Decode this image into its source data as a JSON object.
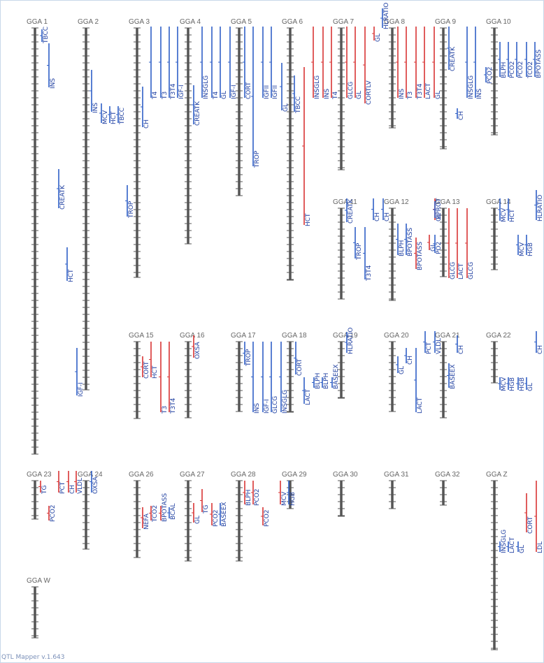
{
  "footer": "QTL Mapper v.1.643",
  "colors": {
    "axis": "#555555",
    "up": "#2f5fc6",
    "down": "#d93434",
    "title": "#666666",
    "frame": "#c8d8ea"
  },
  "chromosomes": [
    {
      "name": "GGA 1",
      "qtls": [
        {
          "trait": "TBCC",
          "color": "blue"
        },
        {
          "trait": "INS",
          "color": "blue"
        },
        {
          "trait": "CREATK",
          "color": "blue"
        },
        {
          "trait": "HCT",
          "color": "blue"
        },
        {
          "trait": "IGF-I",
          "color": "blue"
        }
      ]
    },
    {
      "name": "GGA 2",
      "qtls": [
        {
          "trait": "INS",
          "color": "blue"
        },
        {
          "trait": "MCV",
          "color": "blue"
        },
        {
          "trait": "HCT",
          "color": "blue"
        },
        {
          "trait": "TBCC",
          "color": "blue"
        }
      ]
    },
    {
      "name": "GGA 3",
      "qtls": [
        {
          "trait": "CH",
          "color": "blue"
        },
        {
          "trait": "TROP",
          "color": "blue"
        },
        {
          "trait": "T4",
          "color": "blue"
        },
        {
          "trait": "T3",
          "color": "blue"
        },
        {
          "trait": "T3T4",
          "color": "blue"
        },
        {
          "trait": "IGF-I",
          "color": "blue"
        }
      ]
    },
    {
      "name": "GGA 4",
      "qtls": [
        {
          "trait": "CREATK",
          "color": "blue"
        },
        {
          "trait": "INSGLG",
          "color": "blue"
        },
        {
          "trait": "T4",
          "color": "blue"
        },
        {
          "trait": "GL",
          "color": "blue"
        },
        {
          "trait": "IGF-I",
          "color": "blue"
        }
      ]
    },
    {
      "name": "GGA 5",
      "qtls": [
        {
          "trait": "CORT",
          "color": "blue"
        },
        {
          "trait": "TROP",
          "color": "blue"
        },
        {
          "trait": "IGFII",
          "color": "blue"
        },
        {
          "trait": "IGFII",
          "color": "blue"
        }
      ]
    },
    {
      "name": "GGA 6",
      "qtls": [
        {
          "trait": "GL",
          "color": "blue"
        },
        {
          "trait": "TBCC",
          "color": "blue"
        },
        {
          "trait": "HCT",
          "color": "red"
        }
      ]
    },
    {
      "name": "GGA 7",
      "qtls": [
        {
          "trait": "INSGLG",
          "color": "red"
        },
        {
          "trait": "INS",
          "color": "red"
        },
        {
          "trait": "T4",
          "color": "red"
        },
        {
          "trait": "GLCG",
          "color": "red"
        },
        {
          "trait": "GL",
          "color": "red"
        },
        {
          "trait": "CORTLV",
          "color": "red"
        }
      ]
    },
    {
      "name": "GGA 8",
      "qtls": [
        {
          "trait": "GL",
          "color": "red"
        },
        {
          "trait": "HLRATIO",
          "color": "blue"
        },
        {
          "trait": "INS",
          "color": "red"
        },
        {
          "trait": "T3",
          "color": "red"
        },
        {
          "trait": "T3T4",
          "color": "red"
        },
        {
          "trait": "LACT",
          "color": "red"
        },
        {
          "trait": "GL",
          "color": "red"
        }
      ]
    },
    {
      "name": "GGA 9",
      "qtls": [
        {
          "trait": "CREATK",
          "color": "blue"
        },
        {
          "trait": "CH",
          "color": "blue"
        },
        {
          "trait": "INSGLG",
          "color": "blue"
        },
        {
          "trait": "INS",
          "color": "blue"
        }
      ]
    },
    {
      "name": "GGA 10",
      "qtls": [
        {
          "trait": "PCO2",
          "color": "blue"
        },
        {
          "trait": "BLPH",
          "color": "blue"
        },
        {
          "trait": "PCO2",
          "color": "blue"
        },
        {
          "trait": "PCO2",
          "color": "blue"
        },
        {
          "trait": "TCO2",
          "color": "blue"
        },
        {
          "trait": "BPOTASS",
          "color": "blue"
        }
      ]
    },
    {
      "name": "GGA 11",
      "qtls": [
        {
          "trait": "CREATK",
          "color": "blue"
        },
        {
          "trait": "TROP",
          "color": "blue"
        },
        {
          "trait": "T3T4",
          "color": "blue"
        },
        {
          "trait": "CH",
          "color": "blue"
        },
        {
          "trait": "CH",
          "color": "blue"
        }
      ]
    },
    {
      "name": "GGA 12",
      "qtls": [
        {
          "trait": "BLPH",
          "color": "blue"
        },
        {
          "trait": "BPOTASS",
          "color": "blue"
        },
        {
          "trait": "BPOTASS",
          "color": "red"
        }
      ]
    },
    {
      "name": "GGA 13",
      "qtls": [
        {
          "trait": "GL",
          "color": "red"
        },
        {
          "trait": "BPROT",
          "color": "blue"
        },
        {
          "trait": "GLCG",
          "color": "red"
        },
        {
          "trait": "LACT",
          "color": "red"
        },
        {
          "trait": "GLCG",
          "color": "red"
        },
        {
          "trait": "GL",
          "color": "red"
        },
        {
          "trait": "PO2",
          "color": "blue"
        }
      ]
    },
    {
      "name": "GGA 14",
      "qtls": [
        {
          "trait": "MCV",
          "color": "blue"
        },
        {
          "trait": "HCT",
          "color": "blue"
        },
        {
          "trait": "MCV",
          "color": "blue"
        },
        {
          "trait": "HGB",
          "color": "blue"
        },
        {
          "trait": "HLRATIO",
          "color": "blue"
        }
      ]
    },
    {
      "name": "GGA 15",
      "qtls": [
        {
          "trait": "CORT",
          "color": "red"
        },
        {
          "trait": "HCT",
          "color": "red"
        },
        {
          "trait": "T3",
          "color": "red"
        },
        {
          "trait": "T3T4",
          "color": "red"
        }
      ]
    },
    {
      "name": "GGA 16",
      "qtls": [
        {
          "trait": "OXSA",
          "color": "red"
        }
      ]
    },
    {
      "name": "GGA 17",
      "qtls": [
        {
          "trait": "TROP",
          "color": "blue"
        },
        {
          "trait": "INS",
          "color": "blue"
        },
        {
          "trait": "IGF-I",
          "color": "blue"
        },
        {
          "trait": "GLCG",
          "color": "blue"
        },
        {
          "trait": "INSGLG",
          "color": "blue"
        }
      ]
    },
    {
      "name": "GGA 18",
      "qtls": [
        {
          "trait": "CORT",
          "color": "blue"
        },
        {
          "trait": "LACT",
          "color": "blue"
        },
        {
          "trait": "BLPH",
          "color": "blue"
        },
        {
          "trait": "BLPH",
          "color": "blue"
        },
        {
          "trait": "BASEEX",
          "color": "blue"
        }
      ]
    },
    {
      "name": "GGA 19",
      "qtls": [
        {
          "trait": "HLRATIO",
          "color": "blue"
        }
      ]
    },
    {
      "name": "GGA 20",
      "qtls": [
        {
          "trait": "GL",
          "color": "blue"
        },
        {
          "trait": "CH",
          "color": "blue"
        },
        {
          "trait": "LACT",
          "color": "blue"
        }
      ]
    },
    {
      "name": "GGA 21",
      "qtls": [
        {
          "trait": "PCT",
          "color": "blue"
        },
        {
          "trait": "VLDL",
          "color": "blue"
        },
        {
          "trait": "BASEEX",
          "color": "blue"
        },
        {
          "trait": "CH",
          "color": "blue"
        }
      ]
    },
    {
      "name": "GGA 22",
      "qtls": [
        {
          "trait": "MCV",
          "color": "blue"
        },
        {
          "trait": "HGB",
          "color": "blue"
        },
        {
          "trait": "HGB",
          "color": "blue"
        },
        {
          "trait": "GL",
          "color": "blue"
        },
        {
          "trait": "CH",
          "color": "blue"
        }
      ]
    },
    {
      "name": "GGA 23",
      "qtls": [
        {
          "trait": "TG",
          "color": "red"
        },
        {
          "trait": "PCO2",
          "color": "red"
        },
        {
          "trait": "PCT",
          "color": "red"
        },
        {
          "trait": "CH",
          "color": "red"
        }
      ]
    },
    {
      "name": "GGA 24",
      "qtls": [
        {
          "trait": "VLDL",
          "color": "red"
        },
        {
          "trait": "OXSA",
          "color": "blue"
        }
      ]
    },
    {
      "name": "GGA 26",
      "qtls": [
        {
          "trait": "NEFA",
          "color": "red"
        },
        {
          "trait": "TCO2",
          "color": "red"
        },
        {
          "trait": "BPOTASS",
          "color": "red"
        },
        {
          "trait": "BCAL",
          "color": "blue"
        }
      ]
    },
    {
      "name": "GGA 27",
      "qtls": [
        {
          "trait": "GL",
          "color": "red"
        },
        {
          "trait": "TG",
          "color": "red"
        },
        {
          "trait": "PCO2",
          "color": "red"
        },
        {
          "trait": "BASEEX",
          "color": "blue"
        }
      ]
    },
    {
      "name": "GGA 28",
      "qtls": [
        {
          "trait": "BLPH",
          "color": "red"
        },
        {
          "trait": "PCO2",
          "color": "red"
        },
        {
          "trait": "PCO2",
          "color": "red"
        }
      ]
    },
    {
      "name": "GGA 29",
      "qtls": [
        {
          "trait": "MCV",
          "color": "red"
        },
        {
          "trait": "HGB",
          "color": "blue"
        }
      ]
    },
    {
      "name": "GGA 30",
      "qtls": []
    },
    {
      "name": "GGA 31",
      "qtls": []
    },
    {
      "name": "GGA 32",
      "qtls": []
    },
    {
      "name": "GGA Z",
      "qtls": [
        {
          "trait": "INSGLG",
          "color": "blue"
        },
        {
          "trait": "LACT",
          "color": "blue"
        },
        {
          "trait": "GL",
          "color": "blue"
        },
        {
          "trait": "CORT",
          "color": "red"
        },
        {
          "trait": "LDL",
          "color": "red"
        }
      ]
    },
    {
      "name": "GGA W",
      "qtls": []
    }
  ]
}
